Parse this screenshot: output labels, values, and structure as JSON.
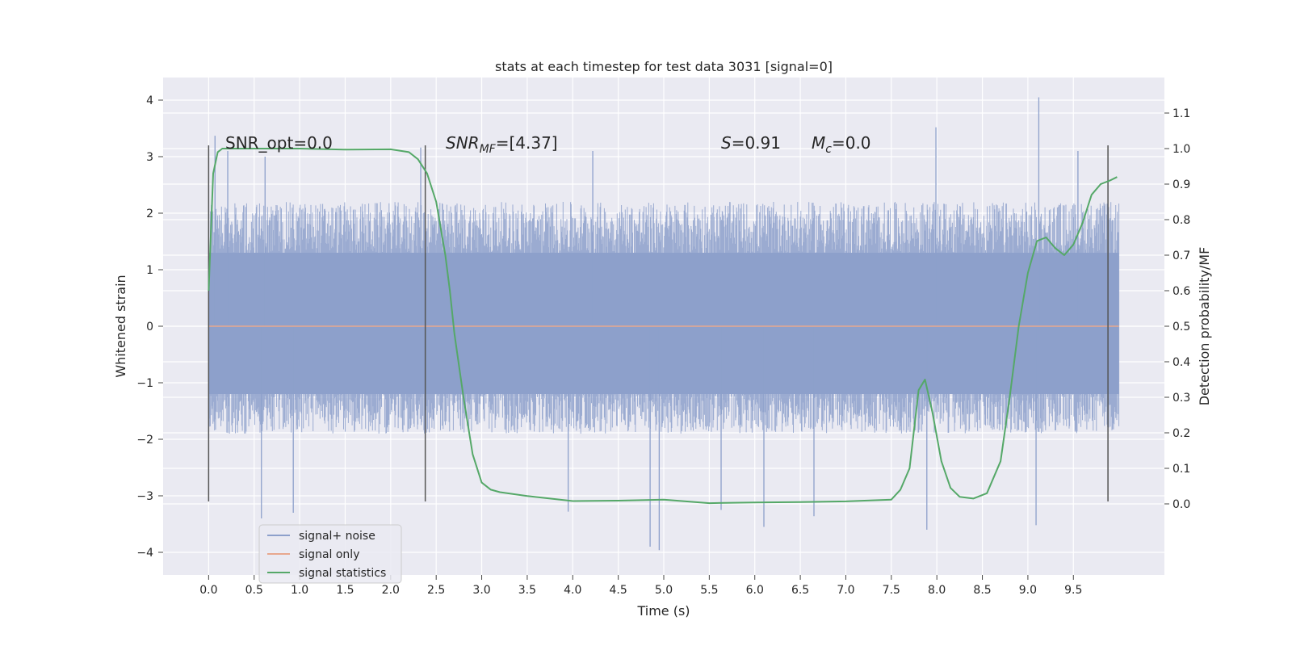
{
  "chart_data": {
    "type": "line",
    "title": "stats at each timestep for test data 3031 [signal=0]",
    "xlabel": "Time (s)",
    "ylabel_left": "Whitened strain",
    "ylabel_right": "Detection probability/MF",
    "xlim": [
      -0.5,
      10.5
    ],
    "ylim_left": [
      -4.4,
      4.4
    ],
    "ylim_right": [
      -0.2,
      1.2
    ],
    "x_ticks": [
      0.0,
      0.5,
      1.0,
      1.5,
      2.0,
      2.5,
      3.0,
      3.5,
      4.0,
      4.5,
      5.0,
      5.5,
      6.0,
      6.5,
      7.0,
      7.5,
      8.0,
      8.5,
      9.0,
      9.5
    ],
    "x_tick_labels": [
      "0.0",
      "0.5",
      "1.0",
      "1.5",
      "2.0",
      "2.5",
      "3.0",
      "3.5",
      "4.0",
      "4.5",
      "5.0",
      "5.5",
      "6.0",
      "6.5",
      "7.0",
      "7.5",
      "8.0",
      "8.5",
      "9.0",
      "9.5"
    ],
    "y_ticks_left": [
      -4,
      -3,
      -2,
      -1,
      0,
      1,
      2,
      3,
      4
    ],
    "y_tick_labels_left": [
      "−4",
      "−3",
      "−2",
      "−1",
      "0",
      "1",
      "2",
      "3",
      "4"
    ],
    "y_ticks_right": [
      0.0,
      0.1,
      0.2,
      0.3,
      0.4,
      0.5,
      0.6,
      0.7,
      0.8,
      0.9,
      1.0,
      1.1
    ],
    "y_tick_labels_right": [
      "0.0",
      "0.1",
      "0.2",
      "0.3",
      "0.4",
      "0.5",
      "0.6",
      "0.7",
      "0.8",
      "0.9",
      "1.0",
      "1.1"
    ],
    "grid": true,
    "legend_position": "lower-left",
    "series": [
      {
        "name": "signal+ noise",
        "axis": "left",
        "color": "#8da0cb",
        "x_range": [
          0.0,
          10.0
        ],
        "typical_envelope": [
          -1.9,
          2.2
        ],
        "peaks": [
          {
            "x": 0.07,
            "y": 3.37
          },
          {
            "x": 0.21,
            "y": 3.1
          },
          {
            "x": 0.58,
            "y": -3.4
          },
          {
            "x": 0.93,
            "y": -3.3
          },
          {
            "x": 0.62,
            "y": 3.0
          },
          {
            "x": 2.33,
            "y": 3.16
          },
          {
            "x": 3.95,
            "y": -3.28
          },
          {
            "x": 4.22,
            "y": 3.1
          },
          {
            "x": 4.85,
            "y": -3.9
          },
          {
            "x": 4.95,
            "y": -3.96
          },
          {
            "x": 5.63,
            "y": -3.25
          },
          {
            "x": 6.1,
            "y": -3.55
          },
          {
            "x": 6.65,
            "y": -3.36
          },
          {
            "x": 7.89,
            "y": -3.6
          },
          {
            "x": 7.99,
            "y": 3.52
          },
          {
            "x": 9.12,
            "y": 4.05
          },
          {
            "x": 9.09,
            "y": -3.52
          },
          {
            "x": 9.55,
            "y": 3.1
          }
        ]
      },
      {
        "name": "signal only",
        "axis": "left",
        "color": "#e8a88e",
        "x": [
          0.0,
          10.0
        ],
        "y": [
          0.0,
          0.0
        ]
      },
      {
        "name": "signal statistics",
        "axis": "right",
        "color": "#55a868",
        "x": [
          0.0,
          0.05,
          0.1,
          0.15,
          0.25,
          0.5,
          1.0,
          1.5,
          2.0,
          2.2,
          2.3,
          2.4,
          2.5,
          2.6,
          2.65,
          2.7,
          2.8,
          2.9,
          3.0,
          3.1,
          3.2,
          3.5,
          4.0,
          4.5,
          5.0,
          5.5,
          6.0,
          6.5,
          7.0,
          7.5,
          7.6,
          7.7,
          7.8,
          7.87,
          7.95,
          8.05,
          8.15,
          8.25,
          8.4,
          8.55,
          8.7,
          8.8,
          8.9,
          9.0,
          9.1,
          9.2,
          9.3,
          9.4,
          9.5,
          9.6,
          9.7,
          9.8,
          9.9,
          9.98
        ],
        "y": [
          0.6,
          0.93,
          0.99,
          1.0,
          1.0,
          1.0,
          1.0,
          0.997,
          0.998,
          0.99,
          0.97,
          0.93,
          0.85,
          0.7,
          0.6,
          0.48,
          0.3,
          0.14,
          0.06,
          0.04,
          0.033,
          0.022,
          0.008,
          0.009,
          0.012,
          0.002,
          0.004,
          0.005,
          0.007,
          0.012,
          0.04,
          0.1,
          0.32,
          0.35,
          0.26,
          0.12,
          0.045,
          0.02,
          0.015,
          0.03,
          0.12,
          0.3,
          0.5,
          0.65,
          0.74,
          0.75,
          0.72,
          0.7,
          0.73,
          0.79,
          0.87,
          0.9,
          0.91,
          0.92
        ]
      }
    ],
    "vertical_lines": [
      {
        "x": 0.0,
        "y_range": [
          -3.1,
          3.2
        ],
        "color": "#555555"
      },
      {
        "x": 2.38,
        "y_range": [
          -3.1,
          3.2
        ],
        "color": "#555555"
      },
      {
        "x": 9.88,
        "y_range": [
          -3.1,
          3.2
        ],
        "color": "#555555"
      }
    ],
    "annotations": {
      "snr_opt": "SNR_opt=0.0",
      "snr_mf_main": "SNR",
      "snr_mf_sub": "MF",
      "snr_mf_value": "=[4.37]",
      "s_main": "S",
      "s_value": "=0.91",
      "mc_main": "M",
      "mc_sub": "c",
      "mc_value": "=0.0"
    }
  }
}
